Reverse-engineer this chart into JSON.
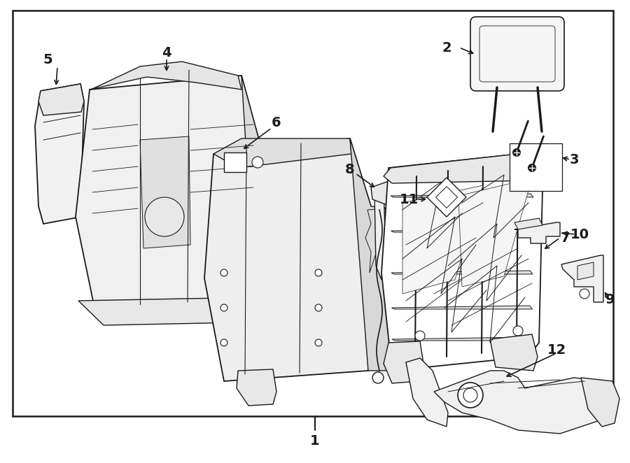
{
  "bg_color": "#ffffff",
  "line_color": "#1a1a1a",
  "border_lw": 1.5,
  "lw": 1.0,
  "label_fontsize": 14,
  "fig_width": 9.0,
  "fig_height": 6.62,
  "dpi": 100
}
